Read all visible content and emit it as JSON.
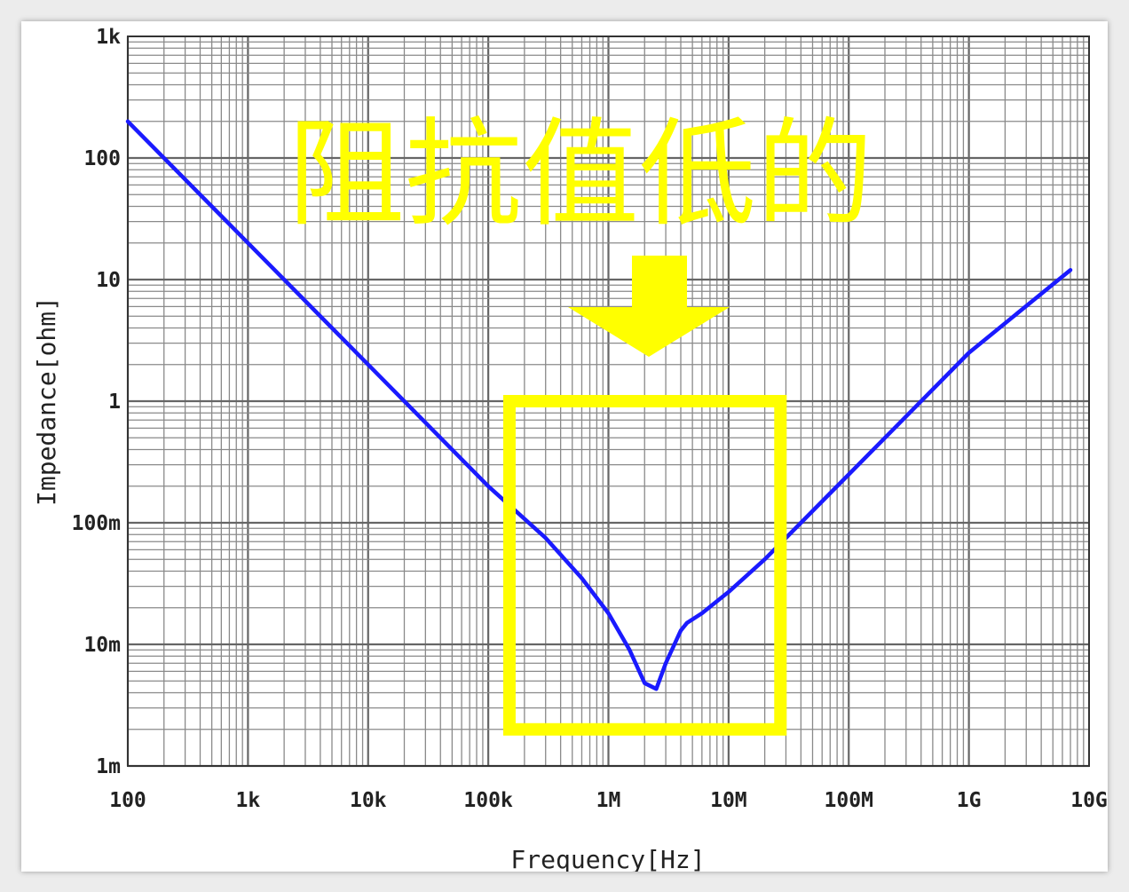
{
  "chart_data": {
    "type": "line",
    "title": "",
    "xlabel": "Frequency[Hz]",
    "ylabel": "Impedance[ohm]",
    "x_scale": "log",
    "y_scale": "log",
    "xlim": [
      100,
      10000000000
    ],
    "ylim": [
      0.001,
      1000
    ],
    "grid": true,
    "x_ticks": [
      "100",
      "1k",
      "10k",
      "100k",
      "1M",
      "10M",
      "100M",
      "1G",
      "10G"
    ],
    "y_ticks": [
      "1k",
      "100",
      "10",
      "1",
      "100m",
      "10m",
      "1m"
    ],
    "series": [
      {
        "color": "#1a1aff",
        "x": [
          100,
          1000,
          10000,
          100000,
          300000,
          600000,
          1000000,
          1500000,
          2000000,
          2500000,
          3000000,
          4000000,
          4500000,
          6000000,
          10000000,
          20000000,
          100000000,
          1000000000,
          7000000000
        ],
        "y": [
          200,
          20,
          2,
          0.2,
          0.075,
          0.035,
          0.018,
          0.009,
          0.0048,
          0.0043,
          0.007,
          0.013,
          0.015,
          0.018,
          0.027,
          0.05,
          0.25,
          2.5,
          12
        ]
      }
    ],
    "annotations": {
      "text": "阻抗值低的",
      "arrow": "down",
      "highlight_box_x": [
        150000,
        27000000
      ],
      "highlight_box_y": [
        0.002,
        1
      ],
      "color": "#ffff00"
    }
  }
}
